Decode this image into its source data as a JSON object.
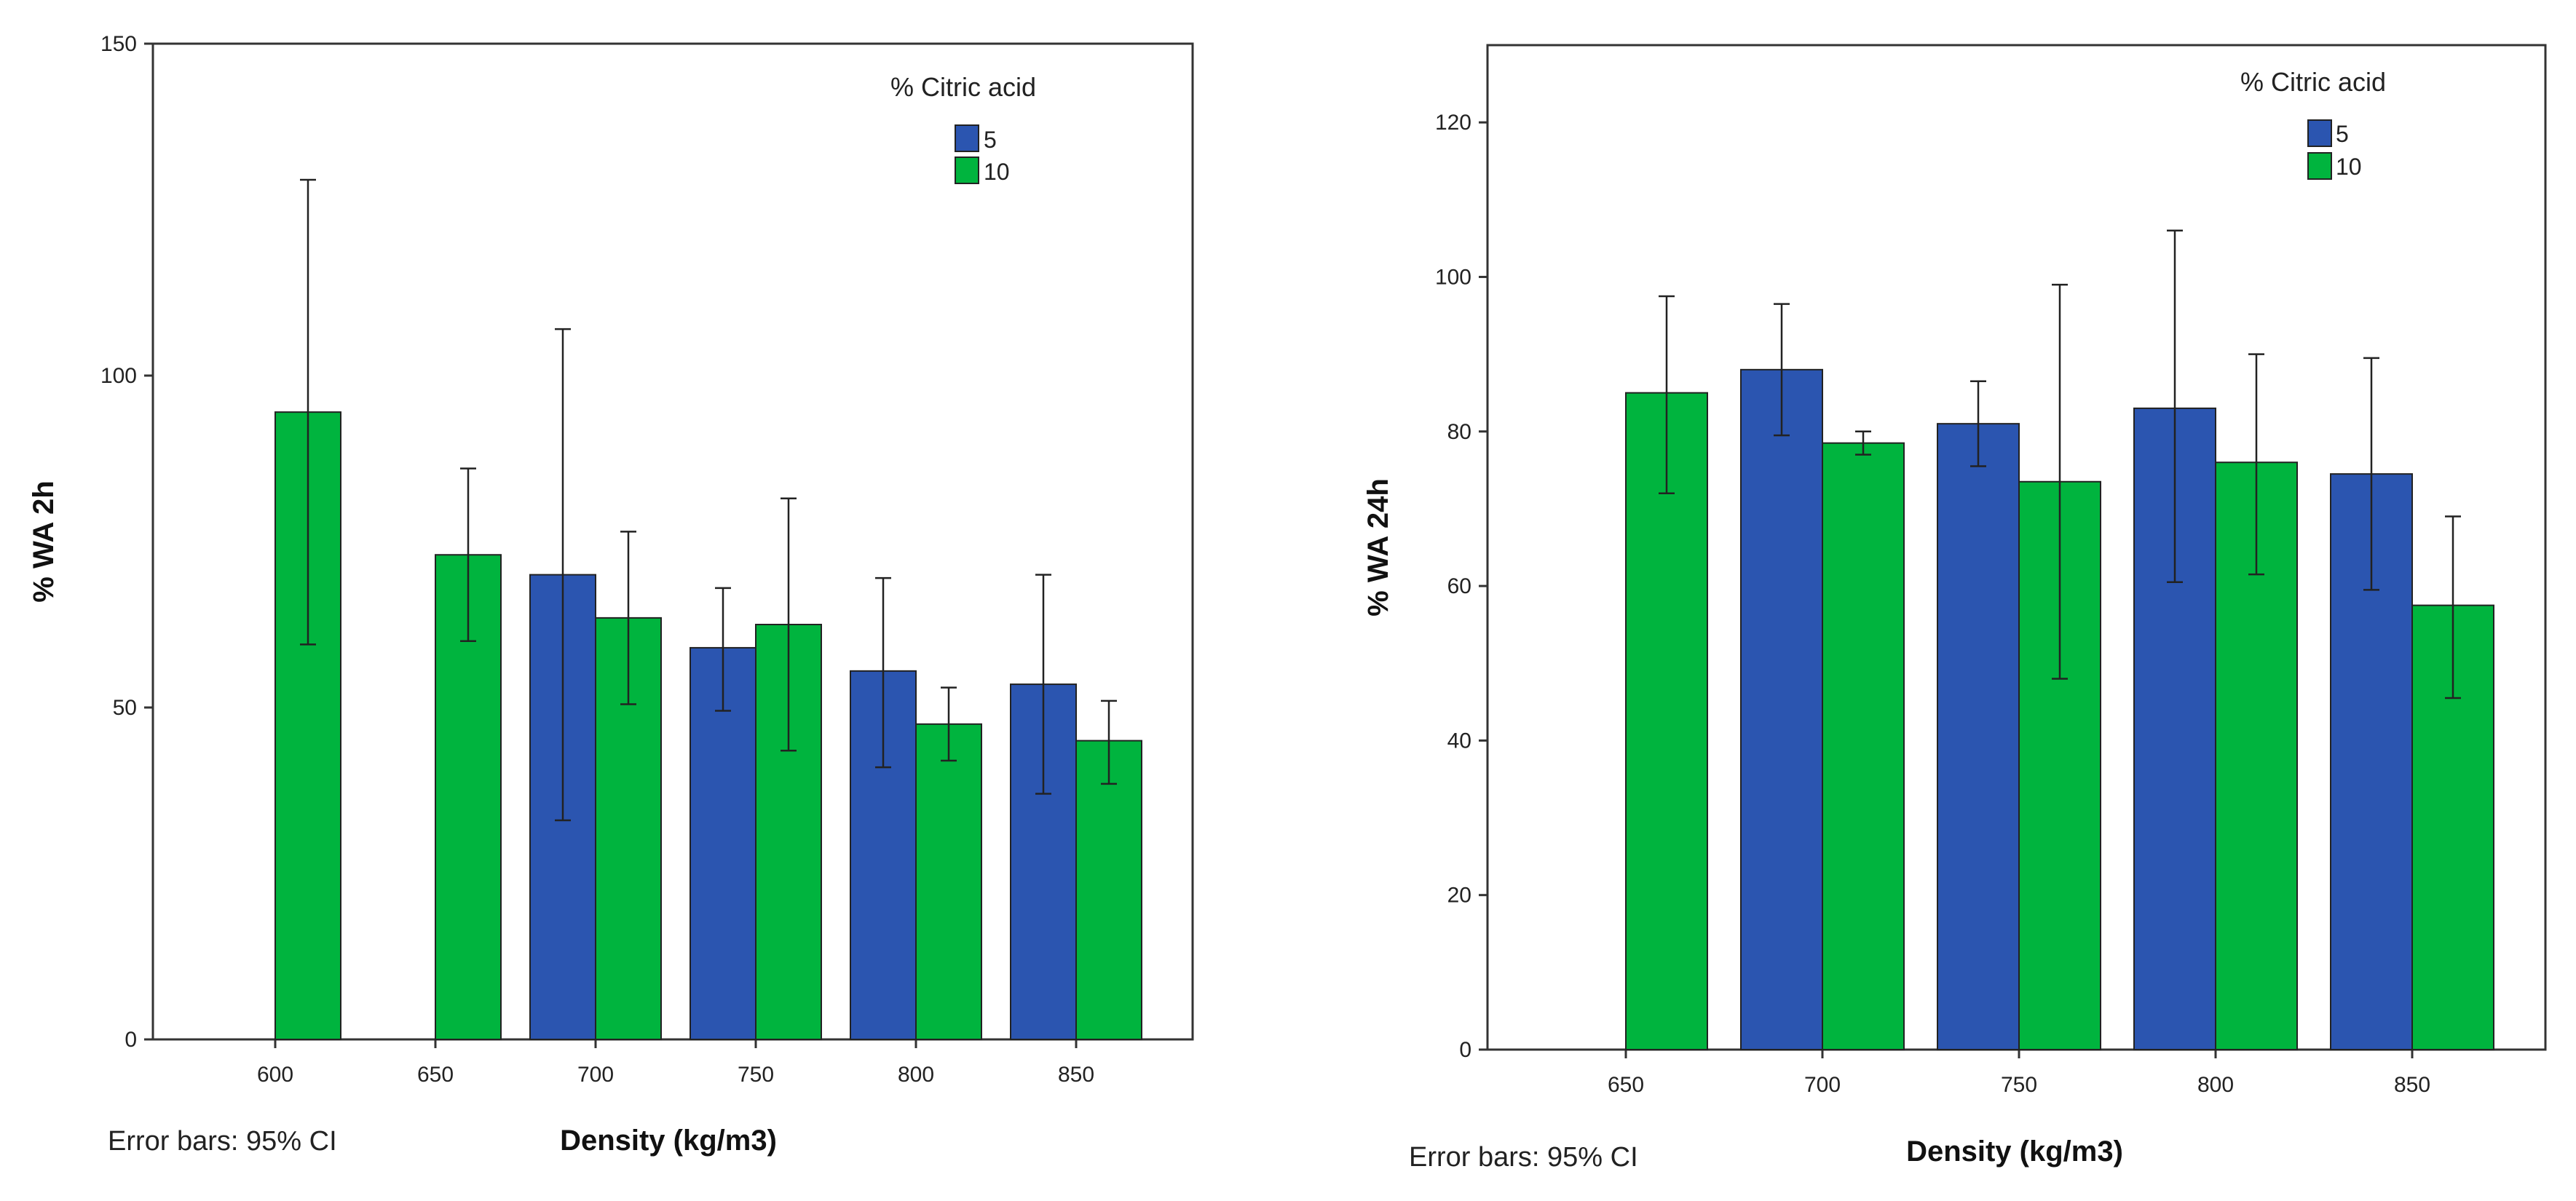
{
  "colors": {
    "series_5": "#2b55b0",
    "series_10": "#00b43e",
    "frame": "#333333",
    "error_bar": "#222222"
  },
  "chart_data": [
    {
      "type": "bar",
      "title": "",
      "xlabel": "Density (kg/m3)",
      "ylabel": "% WA 2h",
      "ylim": [
        0,
        150
      ],
      "yticks": [
        0,
        50,
        100,
        150
      ],
      "categories": [
        "600",
        "650",
        "700",
        "750",
        "800",
        "850"
      ],
      "legend_title": "% Citric acid",
      "legend_position": "top-right",
      "error_bar_note": "Error bars: 95% CI",
      "series": [
        {
          "name": "5",
          "values": [
            null,
            null,
            70,
            59,
            55.5,
            53.5
          ],
          "ci_low": [
            null,
            null,
            33,
            49.5,
            41,
            37
          ],
          "ci_high": [
            null,
            null,
            107,
            68,
            69.5,
            70
          ]
        },
        {
          "name": "10",
          "values": [
            94.5,
            73,
            63.5,
            62.5,
            47.5,
            45
          ],
          "ci_low": [
            59.5,
            60,
            50.5,
            43.5,
            42,
            38.5
          ],
          "ci_high": [
            129.5,
            86,
            76.5,
            81.5,
            53,
            51
          ]
        }
      ]
    },
    {
      "type": "bar",
      "title": "",
      "xlabel": "Density (kg/m3)",
      "ylabel": "% WA 24h",
      "ylim": [
        0,
        130
      ],
      "yticks": [
        0,
        20,
        40,
        60,
        80,
        100,
        120
      ],
      "categories": [
        "650",
        "700",
        "750",
        "800",
        "850"
      ],
      "legend_title": "% Citric acid",
      "legend_position": "top-right",
      "error_bar_note": "Error bars: 95% CI",
      "series": [
        {
          "name": "5",
          "values": [
            null,
            88,
            81,
            83,
            74.5
          ],
          "ci_low": [
            null,
            79.5,
            75.5,
            60.5,
            59.5
          ],
          "ci_high": [
            null,
            96.5,
            86.5,
            106,
            89.5
          ]
        },
        {
          "name": "10",
          "values": [
            85,
            78.5,
            73.5,
            76,
            57.5
          ],
          "ci_low": [
            72,
            77,
            48,
            61.5,
            45.5
          ],
          "ci_high": [
            97.5,
            80,
            99,
            90,
            69
          ]
        }
      ]
    }
  ]
}
